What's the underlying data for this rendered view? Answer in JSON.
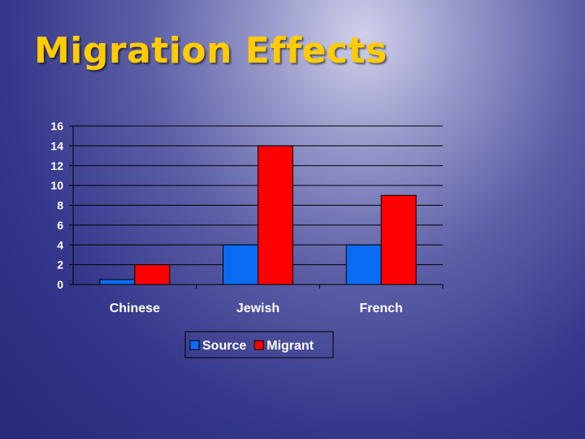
{
  "slide": {
    "title": "Migration Effects"
  },
  "chart_data": {
    "type": "bar",
    "categories": [
      "Chinese",
      "Jewish",
      "French"
    ],
    "series": [
      {
        "name": "Source",
        "values": [
          0.5,
          4,
          4
        ],
        "color": "#0a6cf2"
      },
      {
        "name": "Migrant",
        "values": [
          2,
          14,
          9
        ],
        "color": "#ff0000"
      }
    ],
    "ylim": [
      0,
      16
    ],
    "yticks": [
      0,
      2,
      4,
      6,
      8,
      10,
      12,
      14,
      16
    ],
    "grid": true,
    "legend": "bottom"
  }
}
